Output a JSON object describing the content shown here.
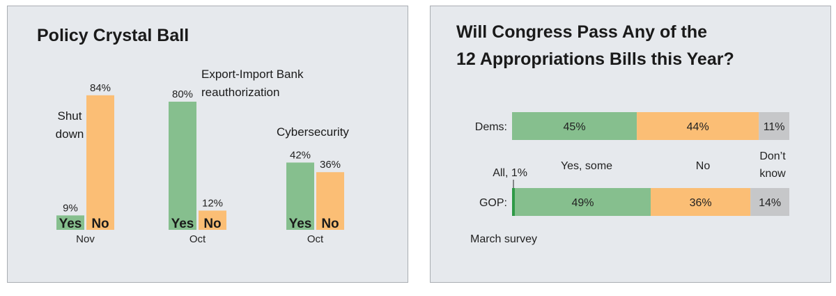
{
  "colors": {
    "yes": "#86bf8e",
    "no": "#fbbe75",
    "dontknow": "#c6c7c9",
    "all": "#2e9a47",
    "panel": "#e6e9ed"
  },
  "chart_data": [
    {
      "type": "bar",
      "title": "Policy Crystal Ball",
      "ylim": [
        0,
        100
      ],
      "groups": [
        {
          "topic_lines": [
            "Shut",
            "down"
          ],
          "month": "Nov",
          "yes": 9,
          "no": 84,
          "yes_label": "9%",
          "no_label": "84%"
        },
        {
          "topic_lines": [
            "Export-Import Bank",
            "reauthorization"
          ],
          "month": "Oct",
          "yes": 80,
          "no": 12,
          "yes_label": "80%",
          "no_label": "12%"
        },
        {
          "topic_lines": [
            "Cybersecurity"
          ],
          "month": "Oct",
          "yes": 42,
          "no": 36,
          "yes_label": "42%",
          "no_label": "36%"
        }
      ],
      "bar_text": {
        "yes": "Yes",
        "no": "No"
      }
    },
    {
      "type": "bar",
      "orientation": "horizontal-stacked",
      "title_lines": [
        "Will Congress Pass Any of the",
        "12 Appropriations Bills this Year?"
      ],
      "xlim": [
        0,
        100
      ],
      "categories": [
        "Dems:",
        "GOP:"
      ],
      "series": [
        {
          "name": "All, 1%",
          "values": [
            0,
            1
          ],
          "labels": [
            "",
            ""
          ]
        },
        {
          "name": "Yes, some",
          "values": [
            45,
            49
          ],
          "labels": [
            "45%",
            "49%"
          ]
        },
        {
          "name": "No",
          "values": [
            44,
            36
          ],
          "labels": [
            "44%",
            "36%"
          ]
        },
        {
          "name_lines": [
            "Don’t",
            "know"
          ],
          "values": [
            11,
            14
          ],
          "labels": [
            "11%",
            "14%"
          ]
        }
      ],
      "note": "March survey"
    }
  ]
}
